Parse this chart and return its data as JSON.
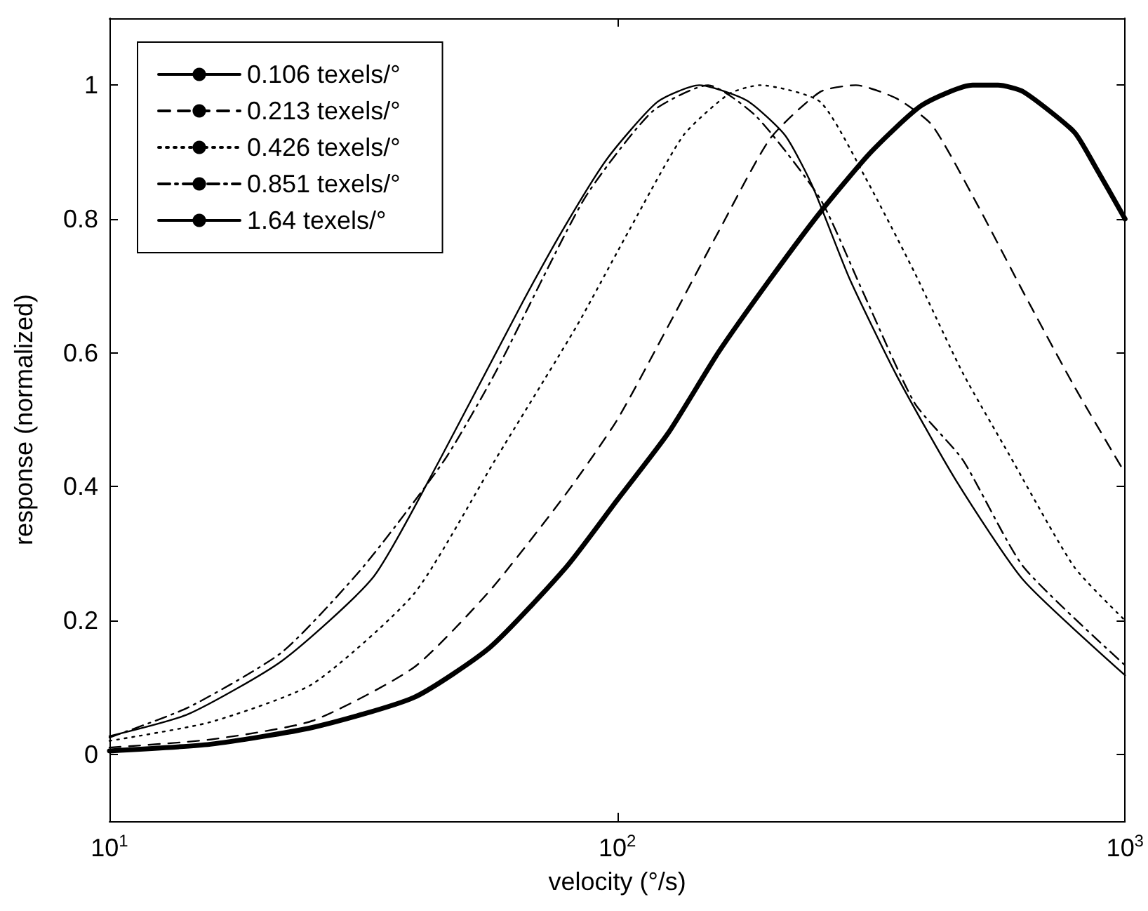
{
  "chart_data": {
    "type": "line",
    "xlabel": "velocity (°/s)",
    "ylabel": "response (normalized)",
    "log": "x",
    "xlim": [
      10,
      1000
    ],
    "xticks": [
      {
        "value": 10,
        "label": "10$^{1}$"
      },
      {
        "value": 100,
        "label": "10$^{2}$"
      },
      {
        "value": 1000,
        "label": "10$^{3}$"
      }
    ],
    "ylim": [
      -0.1,
      1.1
    ],
    "yticks": [
      0,
      0.2,
      0.4,
      0.6,
      0.8,
      1
    ],
    "grid": false,
    "legend": "top left",
    "marker": "none",
    "series": [
      {
        "name": "0.106 texels/°",
        "color": "#000000",
        "line_style": "solid",
        "x": [
          10,
          15.8,
          25.1,
          39.8,
          56.2,
          79.4,
          100,
          126,
          158,
          200,
          251,
          316,
          398,
          501,
          562,
          631,
          794,
          871,
          1000
        ],
        "values": [
          0.005,
          0.015,
          0.04,
          0.085,
          0.16,
          0.28,
          0.38,
          0.48,
          0.6,
          0.71,
          0.81,
          0.9,
          0.97,
          1.0,
          1.0,
          0.99,
          0.93,
          0.88,
          0.8
        ]
      },
      {
        "name": "0.213 texels/°",
        "color": "#000000",
        "line_style": "dashed",
        "x": [
          10,
          15.8,
          25.1,
          39.8,
          56.2,
          79.4,
          100,
          126,
          158,
          200,
          251,
          295,
          355,
          417,
          513,
          631,
          794,
          1000
        ],
        "values": [
          0.01,
          0.022,
          0.05,
          0.13,
          0.245,
          0.39,
          0.5,
          0.64,
          0.78,
          0.92,
          0.99,
          1.0,
          0.98,
          0.94,
          0.82,
          0.69,
          0.55,
          0.42
        ]
      },
      {
        "name": "0.426 texels/°",
        "color": "#000000",
        "line_style": "dotted",
        "x": [
          10,
          15.8,
          25.1,
          39.8,
          57.5,
          83.2,
          105,
          135,
          166,
          191,
          251,
          309,
          385,
          479,
          589,
          794,
          1000
        ],
        "values": [
          0.02,
          0.048,
          0.105,
          0.24,
          0.44,
          0.64,
          0.78,
          0.925,
          0.987,
          1.0,
          0.975,
          0.86,
          0.72,
          0.57,
          0.45,
          0.28,
          0.2
        ]
      },
      {
        "name": "0.851 texels/°",
        "color": "#000000",
        "line_style": "dashdot",
        "x": [
          10,
          14.3,
          21.9,
          31.6,
          45.7,
          57.5,
          86.1,
          117,
          151,
          188,
          251,
          305,
          385,
          479,
          631,
          1000
        ],
        "values": [
          0.025,
          0.07,
          0.153,
          0.28,
          0.44,
          0.57,
          0.83,
          0.96,
          1.0,
          0.953,
          0.83,
          0.69,
          0.525,
          0.44,
          0.28,
          0.133
        ]
      },
      {
        "name": "1.64 texels/°",
        "color": "#000000",
        "line_style": "solid",
        "x": [
          10,
          14.3,
          21.9,
          33.1,
          44.7,
          64,
          77.6,
          95.5,
          120,
          145,
          180,
          214,
          242,
          287,
          355,
          464,
          631,
          1000
        ],
        "values": [
          0.027,
          0.06,
          0.14,
          0.265,
          0.44,
          0.665,
          0.78,
          0.89,
          0.975,
          1.0,
          0.977,
          0.925,
          0.85,
          0.71,
          0.566,
          0.41,
          0.26,
          0.118
        ]
      }
    ]
  }
}
